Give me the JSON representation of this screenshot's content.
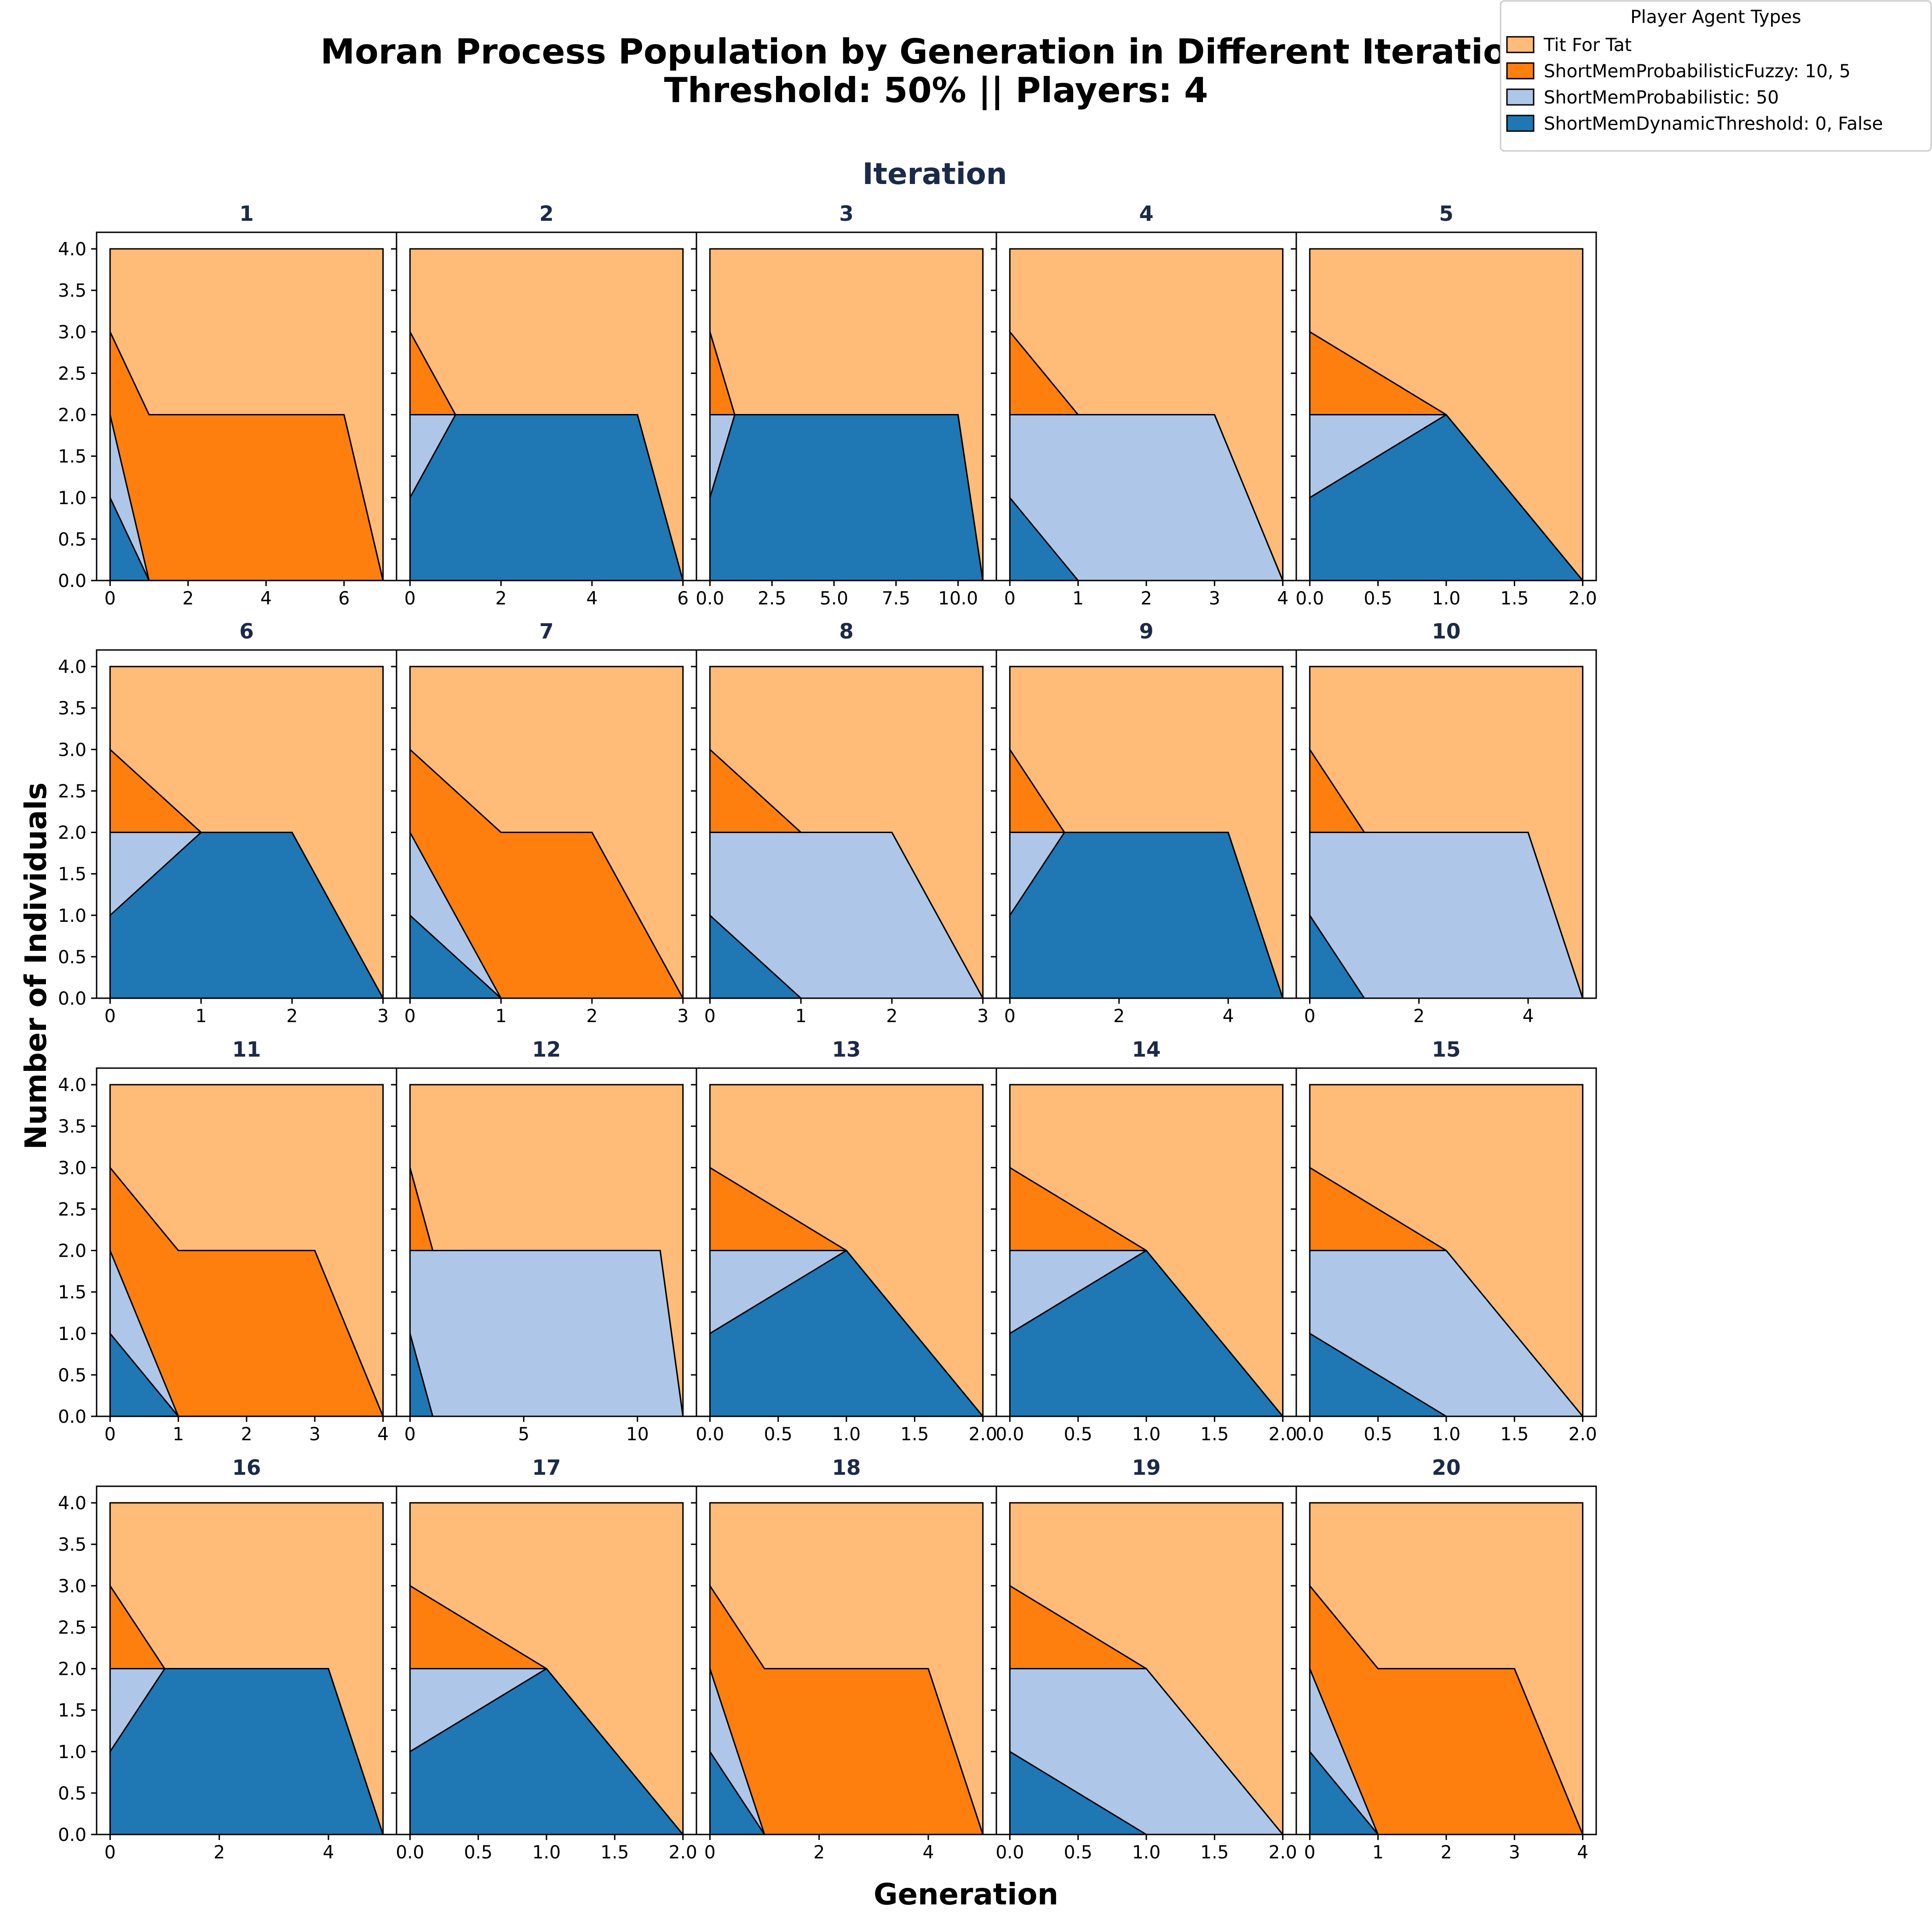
{
  "chart_data": {
    "type": "area",
    "title_lines": [
      "Moran Process Population by Generation in Different Iterations",
      "Threshold: 50% || Players: 4"
    ],
    "facet_title": "Iteration",
    "xlabel": "Generation",
    "ylabel": "Number of Individuals",
    "ylim": [
      0,
      4.2
    ],
    "yticks": [
      "0.0",
      "0.5",
      "1.0",
      "1.5",
      "2.0",
      "2.5",
      "3.0",
      "3.5",
      "4.0"
    ],
    "legend": {
      "title": "Player Agent Types",
      "position": "top-right",
      "entries": [
        {
          "label": "Tit For Tat",
          "color": "#ffbb78"
        },
        {
          "label": "ShortMemProbabilisticFuzzy: 10, 5",
          "color": "#ff7f0e"
        },
        {
          "label": "ShortMemProbabilistic: 50",
          "color": "#aec7e8"
        },
        {
          "label": "ShortMemDynamicThreshold: 0, False",
          "color": "#1f77b4"
        }
      ]
    },
    "stack_order": [
      "ShortMemDynamicThreshold: 0, False",
      "ShortMemProbabilistic: 50",
      "ShortMemProbabilisticFuzzy: 10, 5",
      "Tit For Tat"
    ],
    "panels": [
      {
        "label": "1",
        "x": [
          0,
          1,
          6,
          7
        ],
        "xticks": [
          "0",
          "2",
          "4",
          "6"
        ],
        "series": {
          "ShortMemDynamicThreshold: 0, False": [
            1,
            0,
            0,
            0
          ],
          "ShortMemProbabilistic: 50": [
            1,
            0,
            0,
            0
          ],
          "ShortMemProbabilisticFuzzy: 10, 5": [
            1,
            2,
            2,
            0
          ],
          "Tit For Tat": [
            1,
            2,
            2,
            4
          ]
        }
      },
      {
        "label": "2",
        "x": [
          0,
          1,
          5,
          6
        ],
        "xticks": [
          "0",
          "2",
          "4",
          "6"
        ],
        "series": {
          "ShortMemDynamicThreshold: 0, False": [
            1,
            2,
            2,
            0
          ],
          "ShortMemProbabilistic: 50": [
            1,
            0,
            0,
            0
          ],
          "ShortMemProbabilisticFuzzy: 10, 5": [
            1,
            0,
            0,
            0
          ],
          "Tit For Tat": [
            1,
            2,
            2,
            4
          ]
        }
      },
      {
        "label": "3",
        "x": [
          0,
          1,
          10,
          11
        ],
        "xticks": [
          "0.0",
          "2.5",
          "5.0",
          "7.5",
          "10.0"
        ],
        "series": {
          "ShortMemDynamicThreshold: 0, False": [
            1,
            2,
            2,
            0
          ],
          "ShortMemProbabilistic: 50": [
            1,
            0,
            0,
            0
          ],
          "ShortMemProbabilisticFuzzy: 10, 5": [
            1,
            0,
            0,
            0
          ],
          "Tit For Tat": [
            1,
            2,
            2,
            4
          ]
        }
      },
      {
        "label": "4",
        "x": [
          0,
          1,
          3,
          4
        ],
        "xticks": [
          "0",
          "1",
          "2",
          "3",
          "4"
        ],
        "series": {
          "ShortMemDynamicThreshold: 0, False": [
            1,
            0,
            0,
            0
          ],
          "ShortMemProbabilistic: 50": [
            1,
            2,
            2,
            0
          ],
          "ShortMemProbabilisticFuzzy: 10, 5": [
            1,
            0,
            0,
            0
          ],
          "Tit For Tat": [
            1,
            2,
            2,
            4
          ]
        }
      },
      {
        "label": "5",
        "x": [
          0,
          1,
          2
        ],
        "xticks": [
          "0.0",
          "0.5",
          "1.0",
          "1.5",
          "2.0"
        ],
        "series": {
          "ShortMemDynamicThreshold: 0, False": [
            1,
            2,
            0
          ],
          "ShortMemProbabilistic: 50": [
            1,
            0,
            0
          ],
          "ShortMemProbabilisticFuzzy: 10, 5": [
            1,
            0,
            0
          ],
          "Tit For Tat": [
            1,
            2,
            4
          ]
        }
      },
      {
        "label": "6",
        "x": [
          0,
          1,
          2,
          3
        ],
        "xticks": [
          "0",
          "1",
          "2",
          "3"
        ],
        "series": {
          "ShortMemDynamicThreshold: 0, False": [
            1,
            2,
            2,
            0
          ],
          "ShortMemProbabilistic: 50": [
            1,
            0,
            0,
            0
          ],
          "ShortMemProbabilisticFuzzy: 10, 5": [
            1,
            0,
            0,
            0
          ],
          "Tit For Tat": [
            1,
            2,
            2,
            4
          ]
        }
      },
      {
        "label": "7",
        "x": [
          0,
          1,
          2,
          3
        ],
        "xticks": [
          "0",
          "1",
          "2",
          "3"
        ],
        "series": {
          "ShortMemDynamicThreshold: 0, False": [
            1,
            0,
            0,
            0
          ],
          "ShortMemProbabilistic: 50": [
            1,
            0,
            0,
            0
          ],
          "ShortMemProbabilisticFuzzy: 10, 5": [
            1,
            2,
            2,
            0
          ],
          "Tit For Tat": [
            1,
            2,
            2,
            4
          ]
        }
      },
      {
        "label": "8",
        "x": [
          0,
          1,
          2,
          3
        ],
        "xticks": [
          "0",
          "1",
          "2",
          "3"
        ],
        "series": {
          "ShortMemDynamicThreshold: 0, False": [
            1,
            0,
            0,
            0
          ],
          "ShortMemProbabilistic: 50": [
            1,
            2,
            2,
            0
          ],
          "ShortMemProbabilisticFuzzy: 10, 5": [
            1,
            0,
            0,
            0
          ],
          "Tit For Tat": [
            1,
            2,
            2,
            4
          ]
        }
      },
      {
        "label": "9",
        "x": [
          0,
          1,
          4,
          5
        ],
        "xticks": [
          "0",
          "2",
          "4"
        ],
        "series": {
          "ShortMemDynamicThreshold: 0, False": [
            1,
            2,
            2,
            0
          ],
          "ShortMemProbabilistic: 50": [
            1,
            0,
            0,
            0
          ],
          "ShortMemProbabilisticFuzzy: 10, 5": [
            1,
            0,
            0,
            0
          ],
          "Tit For Tat": [
            1,
            2,
            2,
            4
          ]
        }
      },
      {
        "label": "10",
        "x": [
          0,
          1,
          4,
          5
        ],
        "xticks": [
          "0",
          "2",
          "4"
        ],
        "series": {
          "ShortMemDynamicThreshold: 0, False": [
            1,
            0,
            0,
            0
          ],
          "ShortMemProbabilistic: 50": [
            1,
            2,
            2,
            0
          ],
          "ShortMemProbabilisticFuzzy: 10, 5": [
            1,
            0,
            0,
            0
          ],
          "Tit For Tat": [
            1,
            2,
            2,
            4
          ]
        }
      },
      {
        "label": "11",
        "x": [
          0,
          1,
          3,
          4
        ],
        "xticks": [
          "0",
          "1",
          "2",
          "3",
          "4"
        ],
        "series": {
          "ShortMemDynamicThreshold: 0, False": [
            1,
            0,
            0,
            0
          ],
          "ShortMemProbabilistic: 50": [
            1,
            0,
            0,
            0
          ],
          "ShortMemProbabilisticFuzzy: 10, 5": [
            1,
            2,
            2,
            0
          ],
          "Tit For Tat": [
            1,
            2,
            2,
            4
          ]
        }
      },
      {
        "label": "12",
        "x": [
          0,
          1,
          11,
          12
        ],
        "xticks": [
          "0",
          "5",
          "10"
        ],
        "series": {
          "ShortMemDynamicThreshold: 0, False": [
            1,
            0,
            0,
            0
          ],
          "ShortMemProbabilistic: 50": [
            1,
            2,
            2,
            0
          ],
          "ShortMemProbabilisticFuzzy: 10, 5": [
            1,
            0,
            0,
            0
          ],
          "Tit For Tat": [
            1,
            2,
            2,
            4
          ]
        }
      },
      {
        "label": "13",
        "x": [
          0,
          1,
          2
        ],
        "xticks": [
          "0.0",
          "0.5",
          "1.0",
          "1.5",
          "2.0"
        ],
        "series": {
          "ShortMemDynamicThreshold: 0, False": [
            1,
            2,
            0
          ],
          "ShortMemProbabilistic: 50": [
            1,
            0,
            0
          ],
          "ShortMemProbabilisticFuzzy: 10, 5": [
            1,
            0,
            0
          ],
          "Tit For Tat": [
            1,
            2,
            4
          ]
        }
      },
      {
        "label": "14",
        "x": [
          0,
          1,
          2
        ],
        "xticks": [
          "0.0",
          "0.5",
          "1.0",
          "1.5",
          "2.0"
        ],
        "series": {
          "ShortMemDynamicThreshold: 0, False": [
            1,
            2,
            0
          ],
          "ShortMemProbabilistic: 50": [
            1,
            0,
            0
          ],
          "ShortMemProbabilisticFuzzy: 10, 5": [
            1,
            0,
            0
          ],
          "Tit For Tat": [
            1,
            2,
            4
          ]
        }
      },
      {
        "label": "15",
        "x": [
          0,
          1,
          2
        ],
        "xticks": [
          "0.0",
          "0.5",
          "1.0",
          "1.5",
          "2.0"
        ],
        "series": {
          "ShortMemDynamicThreshold: 0, False": [
            1,
            0,
            0
          ],
          "ShortMemProbabilistic: 50": [
            1,
            2,
            0
          ],
          "ShortMemProbabilisticFuzzy: 10, 5": [
            1,
            0,
            0
          ],
          "Tit For Tat": [
            1,
            2,
            4
          ]
        }
      },
      {
        "label": "16",
        "x": [
          0,
          1,
          4,
          5
        ],
        "xticks": [
          "0",
          "2",
          "4"
        ],
        "series": {
          "ShortMemDynamicThreshold: 0, False": [
            1,
            2,
            2,
            0
          ],
          "ShortMemProbabilistic: 50": [
            1,
            0,
            0,
            0
          ],
          "ShortMemProbabilisticFuzzy: 10, 5": [
            1,
            0,
            0,
            0
          ],
          "Tit For Tat": [
            1,
            2,
            2,
            4
          ]
        }
      },
      {
        "label": "17",
        "x": [
          0,
          1,
          2
        ],
        "xticks": [
          "0.0",
          "0.5",
          "1.0",
          "1.5",
          "2.0"
        ],
        "series": {
          "ShortMemDynamicThreshold: 0, False": [
            1,
            2,
            0
          ],
          "ShortMemProbabilistic: 50": [
            1,
            0,
            0
          ],
          "ShortMemProbabilisticFuzzy: 10, 5": [
            1,
            0,
            0
          ],
          "Tit For Tat": [
            1,
            2,
            4
          ]
        }
      },
      {
        "label": "18",
        "x": [
          0,
          1,
          4,
          5
        ],
        "xticks": [
          "0",
          "2",
          "4"
        ],
        "series": {
          "ShortMemDynamicThreshold: 0, False": [
            1,
            0,
            0,
            0
          ],
          "ShortMemProbabilistic: 50": [
            1,
            0,
            0,
            0
          ],
          "ShortMemProbabilisticFuzzy: 10, 5": [
            1,
            2,
            2,
            0
          ],
          "Tit For Tat": [
            1,
            2,
            2,
            4
          ]
        }
      },
      {
        "label": "19",
        "x": [
          0,
          1,
          2
        ],
        "xticks": [
          "0.0",
          "0.5",
          "1.0",
          "1.5",
          "2.0"
        ],
        "series": {
          "ShortMemDynamicThreshold: 0, False": [
            1,
            0,
            0
          ],
          "ShortMemProbabilistic: 50": [
            1,
            2,
            0
          ],
          "ShortMemProbabilisticFuzzy: 10, 5": [
            1,
            0,
            0
          ],
          "Tit For Tat": [
            1,
            2,
            4
          ]
        }
      },
      {
        "label": "20",
        "x": [
          0,
          1,
          3,
          4
        ],
        "xticks": [
          "0",
          "1",
          "2",
          "3",
          "4"
        ],
        "series": {
          "ShortMemDynamicThreshold: 0, False": [
            1,
            0,
            0,
            0
          ],
          "ShortMemProbabilistic: 50": [
            1,
            0,
            0,
            0
          ],
          "ShortMemProbabilisticFuzzy: 10, 5": [
            1,
            2,
            2,
            0
          ],
          "Tit For Tat": [
            1,
            2,
            2,
            4
          ]
        }
      }
    ]
  }
}
